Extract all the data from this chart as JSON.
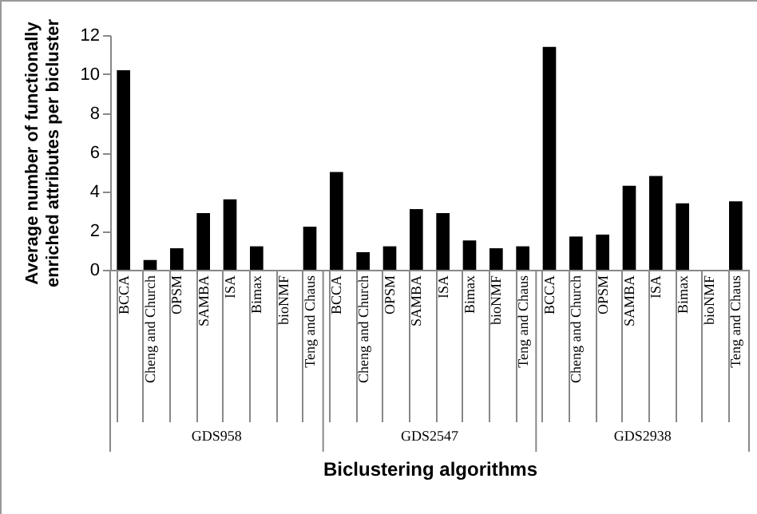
{
  "chart_data": {
    "type": "bar",
    "xlabel": "Biclustering algorithms",
    "ylabel": "Average number of functionally enriched attributes per bicluster",
    "categories": [
      "BCCA",
      "Cheng and Church",
      "OPSM",
      "SAMBA",
      "ISA",
      "Bimax",
      "bioNMF",
      "Teng and Chaus",
      "BCCA",
      "Cheng and Church",
      "OPSM",
      "SAMBA",
      "ISA",
      "Bimax",
      "bioNMF",
      "Teng and Chaus",
      "BCCA",
      "Cheng and Church",
      "OPSM",
      "SAMBA",
      "ISA",
      "Bimax",
      "bioNMF",
      "Teng and Chaus"
    ],
    "values": [
      10.2,
      0.5,
      1.1,
      2.9,
      3.6,
      1.2,
      0,
      2.2,
      5.0,
      0.9,
      1.2,
      3.1,
      2.9,
      1.5,
      1.1,
      1.2,
      11.4,
      1.7,
      1.8,
      4.3,
      4.8,
      3.4,
      0,
      3.5
    ],
    "color": "#000000",
    "ylim": [
      0,
      12
    ],
    "yticks": [
      0,
      2,
      4,
      6,
      8,
      10,
      12
    ],
    "annotations": [
      "GDS958",
      "GDS2547",
      "GDS2938"
    ]
  }
}
